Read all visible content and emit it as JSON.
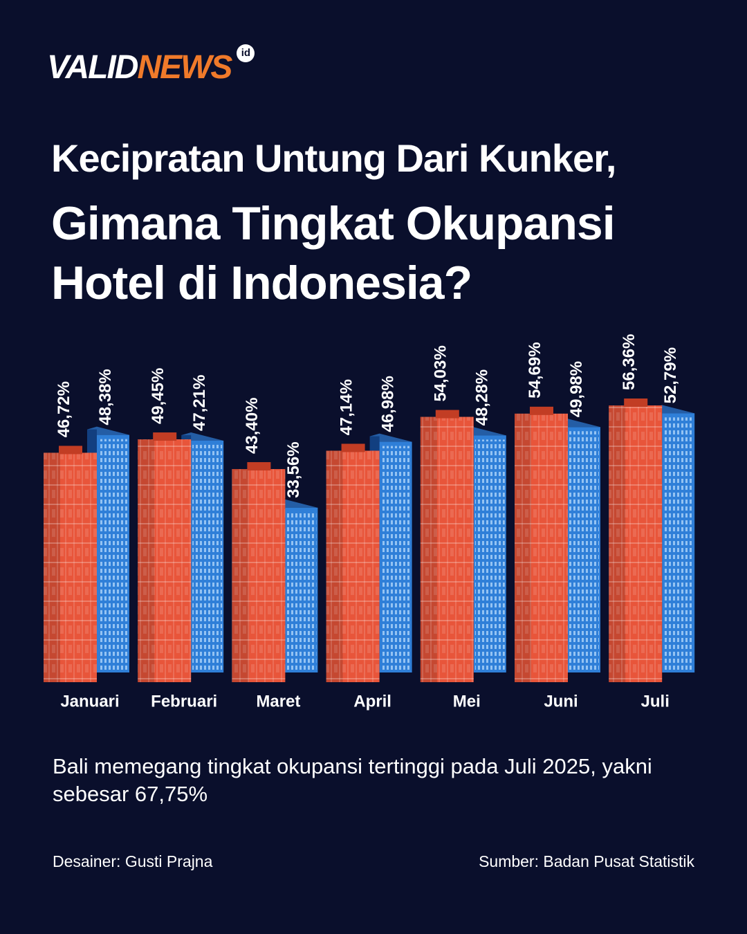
{
  "header": {
    "logo_part1": "VALID",
    "logo_part2": "NEWS",
    "logo_badge": "id"
  },
  "chart_data": {
    "type": "bar",
    "title": "Kecipratan Untung Dari Kunker,",
    "subtitle": "Gimana Tingkat Okupansi Hotel di Indonesia?",
    "categories": [
      "Januari",
      "Februari",
      "Maret",
      "April",
      "Mei",
      "Juni",
      "Juli"
    ],
    "series": [
      {
        "color": "#e8553a",
        "values": [
          46.72,
          49.45,
          43.4,
          47.14,
          54.03,
          54.69,
          56.36
        ],
        "value_labels": [
          "46,72%",
          "49,45%",
          "43,40%",
          "47,14%",
          "54,03%",
          "54,69%",
          "56,36%"
        ]
      },
      {
        "color": "#2f7fd8",
        "values": [
          48.38,
          47.21,
          33.56,
          46.98,
          48.28,
          49.98,
          52.79
        ],
        "value_labels": [
          "48,38%",
          "47,21%",
          "33,56%",
          "46,98%",
          "48,28%",
          "49,98%",
          "52,79%"
        ]
      }
    ],
    "annotation": "Bali memegang tingkat okupansi tertinggi pada Juli 2025, yakni sebesar 67,75%"
  },
  "footer": {
    "designer": "Desainer: Gusti Prajna",
    "source": "Sumber: Badan Pusat Statistik"
  }
}
